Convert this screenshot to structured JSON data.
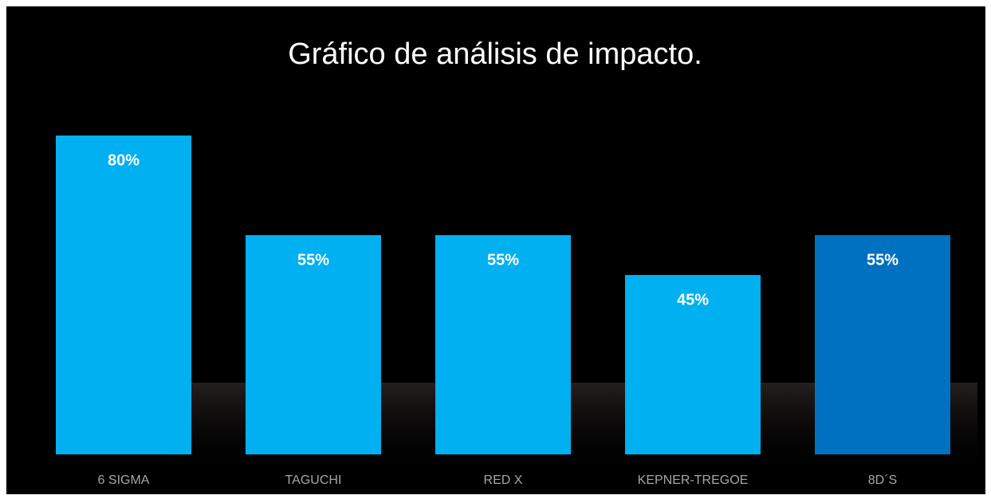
{
  "chart_data": {
    "type": "bar",
    "title": "Gráfico de análisis de impacto.",
    "categories": [
      "6 SIGMA",
      "TAGUCHI",
      "RED X",
      "KEPNER-TREGOE",
      "8D´S"
    ],
    "values": [
      80,
      55,
      55,
      45,
      55
    ],
    "value_labels": [
      "80%",
      "55%",
      "55%",
      "45%",
      "55%"
    ],
    "colors": [
      "#00b0f0",
      "#00b0f0",
      "#00b0f0",
      "#00b0f0",
      "#0070c0"
    ],
    "ylim": [
      0,
      100
    ],
    "grid": false
  }
}
